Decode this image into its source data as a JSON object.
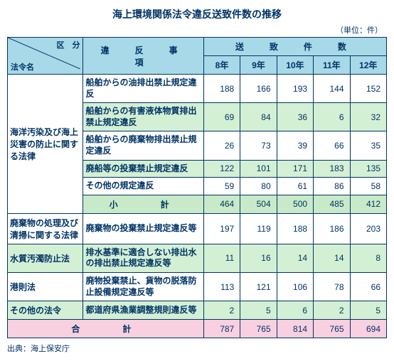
{
  "title": "海上環境関係法令違反送致件数の推移",
  "unit": "（単位：件）",
  "header": {
    "kubun": "区　分",
    "law": "法令名",
    "item": "違　反　事　項",
    "count": "送　致　件　数",
    "years": [
      "8年",
      "9年",
      "10年",
      "11年",
      "12年"
    ]
  },
  "laws": [
    {
      "name": "海洋汚染及び海上災害の防止に関する法律",
      "rows": [
        {
          "bg": "white",
          "item": "船舶からの油排出禁止規定違反",
          "v": [
            188,
            166,
            193,
            144,
            152
          ]
        },
        {
          "bg": "green",
          "item": "船舶からの有害液体物質排出禁止規定違反",
          "v": [
            69,
            84,
            36,
            6,
            32
          ]
        },
        {
          "bg": "white",
          "item": "船舶からの廃棄物排出禁止規定違反",
          "v": [
            26,
            73,
            39,
            66,
            35
          ]
        },
        {
          "bg": "green",
          "item": "廃船等の投棄禁止規定違反",
          "v": [
            122,
            101,
            171,
            183,
            135
          ]
        },
        {
          "bg": "white",
          "item": "その他の規定違反",
          "v": [
            59,
            80,
            61,
            86,
            58
          ]
        }
      ],
      "subtotal": {
        "label": "小　　計",
        "v": [
          464,
          504,
          500,
          485,
          412
        ]
      }
    },
    {
      "name": "廃棄物の処理及び清掃に関する法律",
      "rows": [
        {
          "bg": "white",
          "item": "廃棄物の投棄禁止規定違反等",
          "v": [
            197,
            119,
            188,
            186,
            203
          ]
        }
      ]
    },
    {
      "name": "水質汚濁防止法",
      "rows": [
        {
          "bg": "green",
          "item": "排水基準に適合しない排出水の排出禁止規定違反等",
          "v": [
            11,
            16,
            14,
            14,
            8
          ]
        }
      ]
    },
    {
      "name": "港則法",
      "rows": [
        {
          "bg": "white",
          "item": "廃物投棄禁止、貨物の脱落防止設備規定違反等",
          "v": [
            113,
            121,
            106,
            78,
            66
          ]
        }
      ]
    },
    {
      "name": "その他の法令",
      "rows": [
        {
          "bg": "green",
          "item": "都道府県漁業調整規則違反等",
          "v": [
            2,
            5,
            6,
            2,
            5
          ]
        }
      ]
    }
  ],
  "total": {
    "label": "合　　計",
    "v": [
      787,
      765,
      814,
      765,
      694
    ]
  },
  "source": "出典：海上保安庁",
  "colors": {
    "border": "#003366",
    "text": "#003366",
    "header_bg": "#a7d9e8",
    "white": "#ffffff",
    "green": "#d4f0d4",
    "subtotal": "#c8eac8",
    "total": "#f8d0e0"
  }
}
